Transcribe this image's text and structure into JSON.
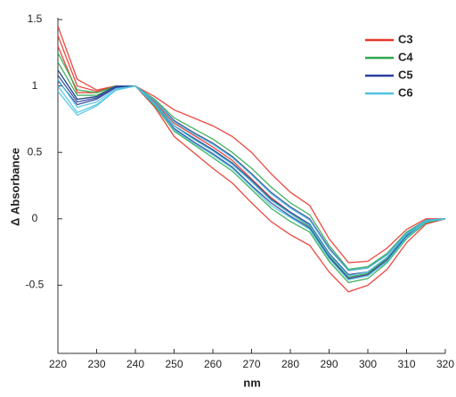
{
  "chart_data": {
    "type": "line",
    "x_label": "nm",
    "y_label": "Δ Absorbance",
    "x": [
      220,
      225,
      230,
      235,
      240,
      245,
      250,
      255,
      260,
      265,
      270,
      275,
      280,
      285,
      290,
      295,
      300,
      305,
      310,
      315,
      320
    ],
    "xlim": [
      220,
      320
    ],
    "xticks": [
      220,
      230,
      240,
      250,
      260,
      270,
      280,
      290,
      300,
      310,
      320
    ],
    "ylim": [
      -1,
      1.5
    ],
    "yticks": [
      -0.5,
      0,
      0.5,
      1,
      1.5
    ],
    "legend": "upper right",
    "series": [
      {
        "name": "C3",
        "color": "#e8352a",
        "lines": [
          [
            1.45,
            1.05,
            0.97,
            1.0,
            1.0,
            0.92,
            0.82,
            0.76,
            0.7,
            0.62,
            0.5,
            0.34,
            0.2,
            0.1,
            -0.15,
            -0.33,
            -0.32,
            -0.22,
            -0.08,
            0,
            0
          ],
          [
            1.38,
            1.0,
            0.96,
            1.0,
            1.0,
            0.88,
            0.72,
            0.63,
            0.54,
            0.44,
            0.3,
            0.16,
            0.05,
            -0.05,
            -0.28,
            -0.45,
            -0.42,
            -0.3,
            -0.13,
            -0.02,
            0
          ],
          [
            1.3,
            0.95,
            0.95,
            1.0,
            1.0,
            0.84,
            0.62,
            0.5,
            0.38,
            0.27,
            0.12,
            -0.02,
            -0.12,
            -0.2,
            -0.4,
            -0.55,
            -0.5,
            -0.38,
            -0.18,
            -0.04,
            0
          ]
        ]
      },
      {
        "name": "C4",
        "color": "#2fa84f",
        "lines": [
          [
            1.25,
            0.97,
            0.95,
            1.0,
            1.0,
            0.9,
            0.76,
            0.68,
            0.6,
            0.5,
            0.38,
            0.24,
            0.12,
            0.03,
            -0.2,
            -0.38,
            -0.36,
            -0.26,
            -0.1,
            -0.01,
            0
          ],
          [
            1.18,
            0.93,
            0.93,
            1.0,
            1.0,
            0.87,
            0.7,
            0.6,
            0.52,
            0.42,
            0.28,
            0.14,
            0.04,
            -0.06,
            -0.28,
            -0.44,
            -0.41,
            -0.3,
            -0.13,
            -0.02,
            0
          ],
          [
            1.12,
            0.9,
            0.92,
            1.0,
            1.0,
            0.85,
            0.66,
            0.56,
            0.46,
            0.36,
            0.22,
            0.08,
            -0.02,
            -0.1,
            -0.32,
            -0.48,
            -0.45,
            -0.33,
            -0.15,
            -0.03,
            0
          ]
        ]
      },
      {
        "name": "C5",
        "color": "#2b3d9a",
        "lines": [
          [
            1.12,
            0.9,
            0.92,
            1.0,
            1.0,
            0.89,
            0.74,
            0.65,
            0.57,
            0.47,
            0.34,
            0.2,
            0.09,
            0.0,
            -0.22,
            -0.39,
            -0.37,
            -0.27,
            -0.11,
            -0.01,
            0
          ],
          [
            1.08,
            0.88,
            0.91,
            0.99,
            1.0,
            0.87,
            0.7,
            0.61,
            0.52,
            0.42,
            0.29,
            0.15,
            0.05,
            -0.04,
            -0.26,
            -0.42,
            -0.4,
            -0.29,
            -0.12,
            -0.02,
            0
          ],
          [
            1.04,
            0.86,
            0.9,
            0.99,
            1.0,
            0.86,
            0.68,
            0.58,
            0.49,
            0.39,
            0.25,
            0.12,
            0.02,
            -0.07,
            -0.29,
            -0.45,
            -0.42,
            -0.31,
            -0.13,
            -0.02,
            0
          ]
        ]
      },
      {
        "name": "C6",
        "color": "#4ec3df",
        "lines": [
          [
            1.05,
            0.84,
            0.88,
            0.98,
            1.0,
            0.89,
            0.73,
            0.64,
            0.56,
            0.46,
            0.33,
            0.19,
            0.08,
            -0.01,
            -0.23,
            -0.39,
            -0.37,
            -0.27,
            -0.11,
            -0.01,
            0
          ],
          [
            1.0,
            0.8,
            0.86,
            0.97,
            1.0,
            0.87,
            0.7,
            0.6,
            0.51,
            0.41,
            0.28,
            0.14,
            0.04,
            -0.05,
            -0.27,
            -0.43,
            -0.4,
            -0.29,
            -0.12,
            -0.02,
            0
          ],
          [
            0.96,
            0.78,
            0.85,
            0.97,
            1.0,
            0.86,
            0.67,
            0.57,
            0.48,
            0.38,
            0.24,
            0.1,
            0.01,
            -0.08,
            -0.3,
            -0.46,
            -0.43,
            -0.32,
            -0.14,
            -0.02,
            0
          ]
        ]
      }
    ]
  }
}
